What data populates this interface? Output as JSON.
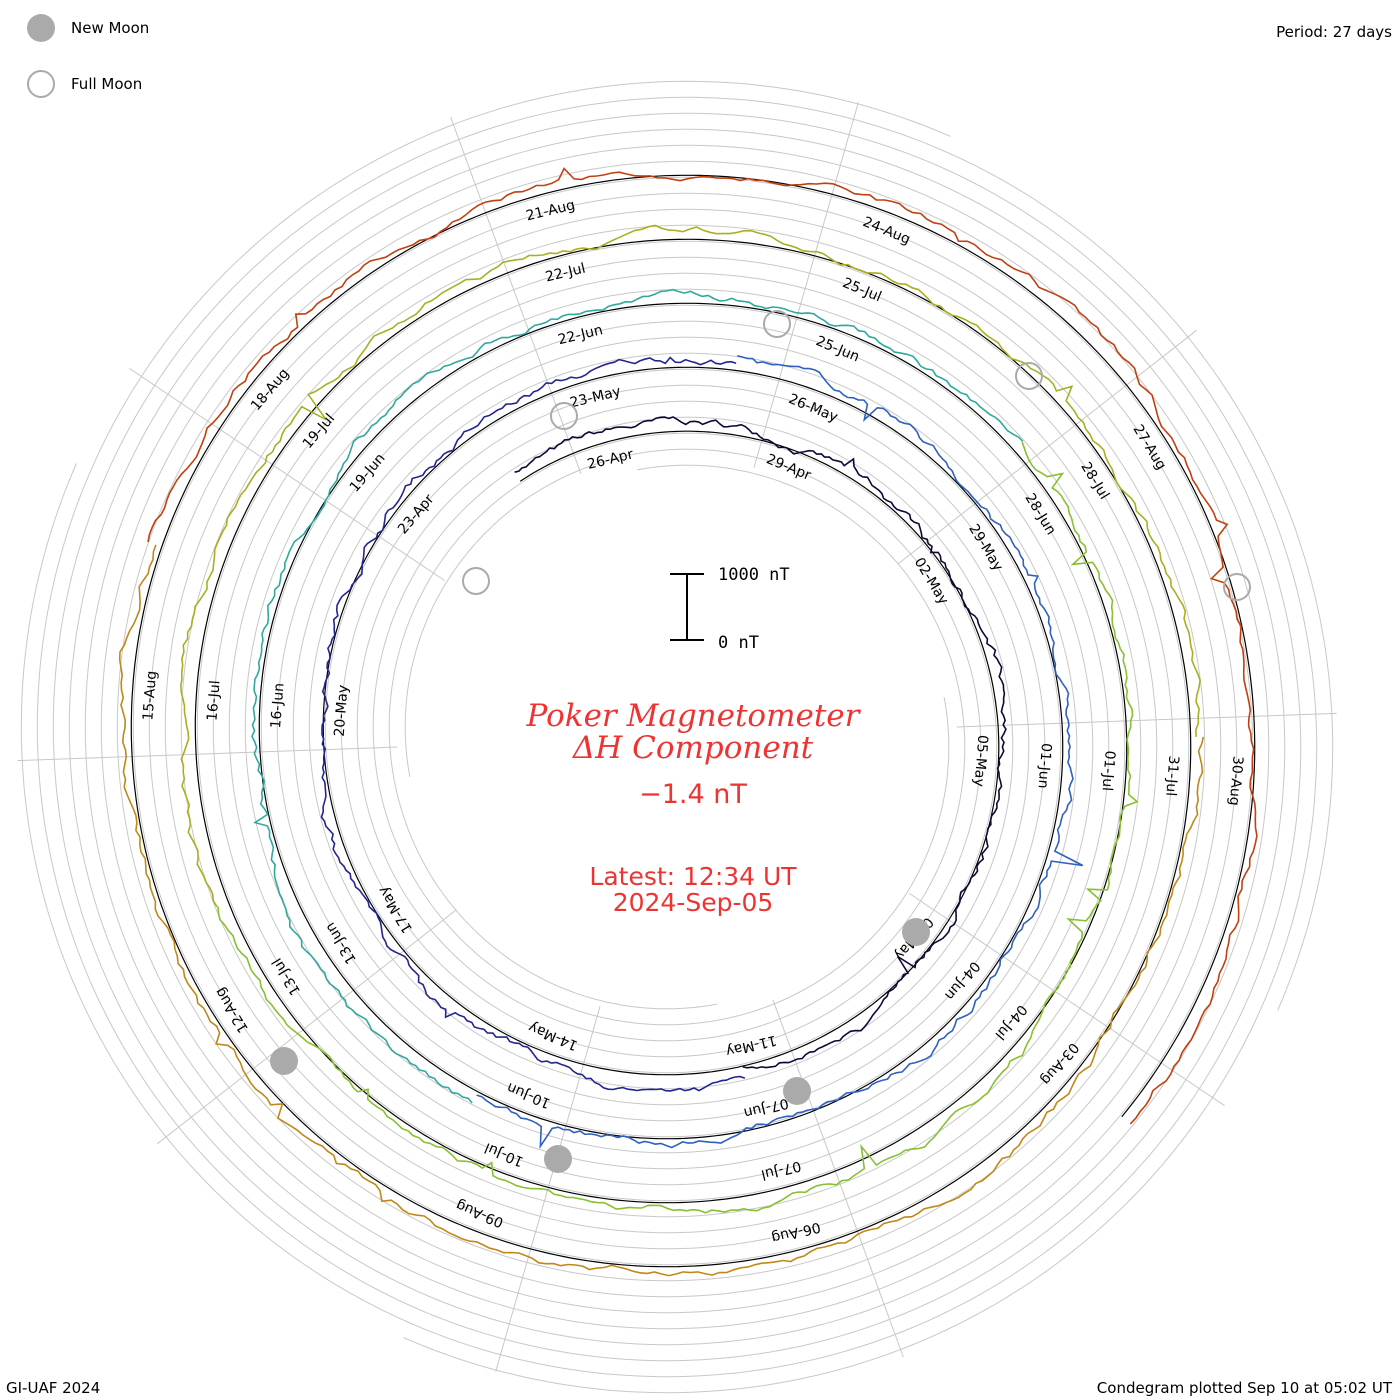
{
  "legend": {
    "new_moon": "New Moon",
    "full_moon": "Full Moon"
  },
  "period_label": "Period: 27 days",
  "footer": {
    "left": "GI-UAF 2024",
    "right": "Condegram plotted Sep 10 at 05:02 UT"
  },
  "title": {
    "line1": "Poker Magnetometer",
    "line2": "ΔH Component"
  },
  "current_value": "−1.4 nT",
  "latest": {
    "time": "Latest: 12:34 UT",
    "date": "2024-Sep-05"
  },
  "scale": {
    "top": "1000 nT",
    "bottom": "0 nT"
  },
  "colors": {
    "title": "#ee3333",
    "grid": "#c8c8c8",
    "baseline": "#000000",
    "moon": "#aaaaaa",
    "rings": [
      "#150535",
      "#252590",
      "#3060c0",
      "#30a8a0",
      "#88c030",
      "#a8b020",
      "#c08818",
      "#c04010"
    ]
  },
  "chart_data": {
    "type": "line",
    "plot_type": "condegram (spiral)",
    "period_days": 27,
    "unit": "nT",
    "rings": [
      {
        "labels": [
          "26-Apr",
          "29-Apr",
          "02-May",
          "05-May",
          "08-May",
          "11-May",
          "14-May",
          "17-May",
          "20-May",
          "23-Apr"
        ]
      },
      {
        "labels": [
          "23-May",
          "26-May",
          "29-May",
          "01-Jun",
          "04-Jun",
          "07-Jun",
          "10-Jun",
          "13-Jun",
          "16-Jun",
          "19-Jun"
        ]
      },
      {
        "labels": [
          "22-Jun",
          "25-Jun",
          "28-Jun",
          "01-Jul",
          "04-Jul",
          "07-Jul",
          "10-Jul",
          "13-Jul",
          "16-Jul",
          "19-Jul"
        ]
      },
      {
        "labels": [
          "22-Jul",
          "25-Jul",
          "28-Jul",
          "31-Jul",
          "03-Aug",
          "06-Aug",
          "09-Aug",
          "12-Aug",
          "15-Aug",
          "18-Aug"
        ]
      },
      {
        "labels": [
          "21-Aug",
          "24-Aug",
          "27-Aug",
          "30-Aug"
        ]
      }
    ],
    "new_moons": [
      "2024-05-08",
      "2024-06-06",
      "2024-07-05",
      "2024-08-04"
    ],
    "full_moons": [
      "2024-04-23",
      "2024-05-23",
      "2024-06-22",
      "2024-07-21",
      "2024-08-19"
    ],
    "latest_value_nT": -1.4
  }
}
